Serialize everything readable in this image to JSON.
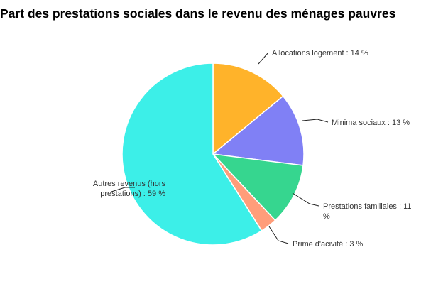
{
  "chart_data": {
    "type": "pie",
    "title": "Part des prestations sociales dans le revenu des ménages pauvres",
    "slices": [
      {
        "label_lines": [
          "Allocations logement : 14 %"
        ],
        "value": 14,
        "color": "#ffb32a"
      },
      {
        "label_lines": [
          "Minima sociaux : 13 %"
        ],
        "value": 13,
        "color": "#8080f5"
      },
      {
        "label_lines": [
          "Prestations familiales : 11",
          "%"
        ],
        "value": 11,
        "color": "#36d68f"
      },
      {
        "label_lines": [
          "Prime d'acivité : 3 %"
        ],
        "value": 3,
        "color": "#ff9d7a"
      },
      {
        "label_lines": [
          "Autres revenus (hors",
          "prestations) : 59 %"
        ],
        "value": 59,
        "color": "#3cefe8"
      }
    ],
    "start": "top",
    "direction": "clockwise",
    "legend": "none"
  }
}
